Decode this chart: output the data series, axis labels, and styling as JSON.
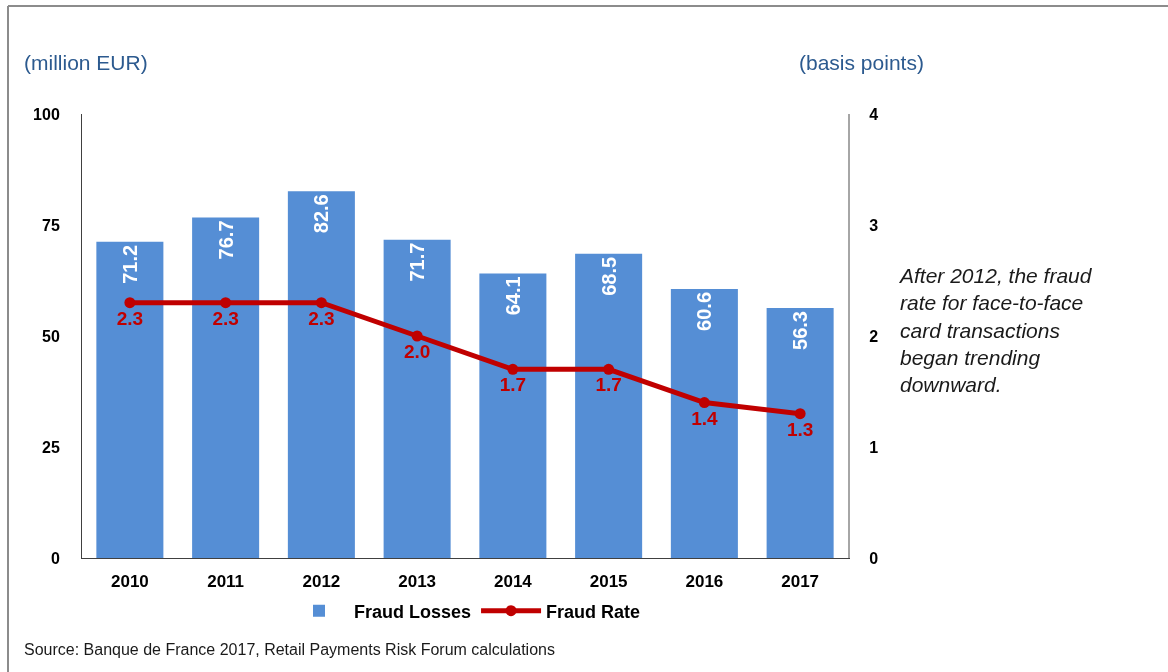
{
  "chart_data": {
    "type": "bar",
    "ylabel": "(million EUR)",
    "y2label": "(basis points)",
    "categories": [
      "2010",
      "2011",
      "2012",
      "2013",
      "2014",
      "2015",
      "2016",
      "2017"
    ],
    "series": [
      {
        "name": "Fraud Losses",
        "color": "#558ed5",
        "values": [
          71.2,
          76.7,
          82.6,
          71.7,
          64.1,
          68.5,
          60.6,
          56.3
        ],
        "value_labels": [
          "71.2",
          "76.7",
          "82.6",
          "71.7",
          "64.1",
          "68.5",
          "60.6",
          "56.3"
        ]
      },
      {
        "name": "Fraud Rate",
        "type": "line",
        "axis": "y2",
        "color": "#c00000",
        "values": [
          2.3,
          2.3,
          2.3,
          2.0,
          1.7,
          1.7,
          1.4,
          1.3
        ],
        "value_labels": [
          "2.3",
          "2.3",
          "2.3",
          "2.0",
          "1.7",
          "1.7",
          "1.4",
          "1.3"
        ]
      }
    ],
    "ylim": [
      0,
      100
    ],
    "yticks": [
      0,
      25,
      50,
      75,
      100
    ],
    "y2lim": [
      0,
      4
    ],
    "y2ticks": [
      0,
      1,
      2,
      3,
      4
    ],
    "grid": false,
    "legend": "bottom",
    "marker": "circle",
    "line_style": "solid",
    "annotations": [
      "After 2012, the fraud rate for face-to-face card transactions began trending downward.",
      "Source: Banque de France 2017, Retail Payments Risk Forum calculations"
    ]
  }
}
